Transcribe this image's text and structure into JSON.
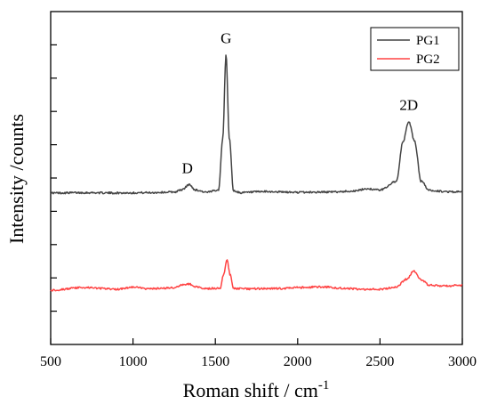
{
  "chart_data": {
    "type": "line",
    "title": "",
    "xlabel": "Roman shift / cm",
    "xlabel_superscript": "-1",
    "ylabel": "Intensity /counts",
    "xlim": [
      500,
      3000
    ],
    "ylim": [
      0,
      100
    ],
    "xticks": [
      500,
      1000,
      1500,
      2000,
      2500,
      3000
    ],
    "xtick_labels": [
      "500",
      "1000",
      "1500",
      "2000",
      "2500",
      "3000"
    ],
    "yticks": [
      10,
      20,
      30,
      40,
      50,
      60,
      70,
      80,
      90
    ],
    "ytick_labels_shown": false,
    "grid": false,
    "legend": {
      "position": "top-right"
    },
    "series": [
      {
        "name": "PG1",
        "color": "#444444",
        "baseline": 45.5,
        "x": [
          500,
          700,
          900,
          1100,
          1250,
          1300,
          1340,
          1380,
          1450,
          1520,
          1545,
          1565,
          1585,
          1610,
          1650,
          1800,
          2000,
          2200,
          2350,
          2420,
          2500,
          2600,
          2640,
          2675,
          2710,
          2750,
          2800,
          2900,
          3000
        ],
        "y": [
          45.5,
          45.6,
          45.5,
          45.6,
          45.8,
          46.5,
          48.0,
          46.4,
          45.7,
          46.5,
          62.0,
          87.0,
          62.0,
          46.2,
          45.6,
          45.9,
          45.7,
          45.8,
          46.1,
          46.8,
          46.4,
          49.0,
          61.0,
          67.0,
          61.0,
          49.0,
          46.3,
          45.9,
          45.8
        ]
      },
      {
        "name": "PG2",
        "color": "#ff4444",
        "baseline": 16.5,
        "x": [
          500,
          700,
          900,
          1000,
          1100,
          1250,
          1300,
          1340,
          1380,
          1450,
          1530,
          1550,
          1570,
          1590,
          1610,
          1700,
          1900,
          2000,
          2150,
          2300,
          2400,
          2500,
          2600,
          2660,
          2705,
          2750,
          2800,
          2900,
          3000
        ],
        "y": [
          16.3,
          17.1,
          16.6,
          17.2,
          16.7,
          17.0,
          17.9,
          18.2,
          17.3,
          16.8,
          16.9,
          21.0,
          25.5,
          21.0,
          16.8,
          16.7,
          16.8,
          17.1,
          17.3,
          16.8,
          16.5,
          16.6,
          17.3,
          19.6,
          22.0,
          19.4,
          17.8,
          17.6,
          17.8
        ]
      }
    ],
    "annotations": [
      {
        "text": "D",
        "x": 1330,
        "y": 51.5
      },
      {
        "text": "G",
        "x": 1565,
        "y": 90.5
      },
      {
        "text": "2D",
        "x": 2675,
        "y": 70.5
      }
    ]
  }
}
